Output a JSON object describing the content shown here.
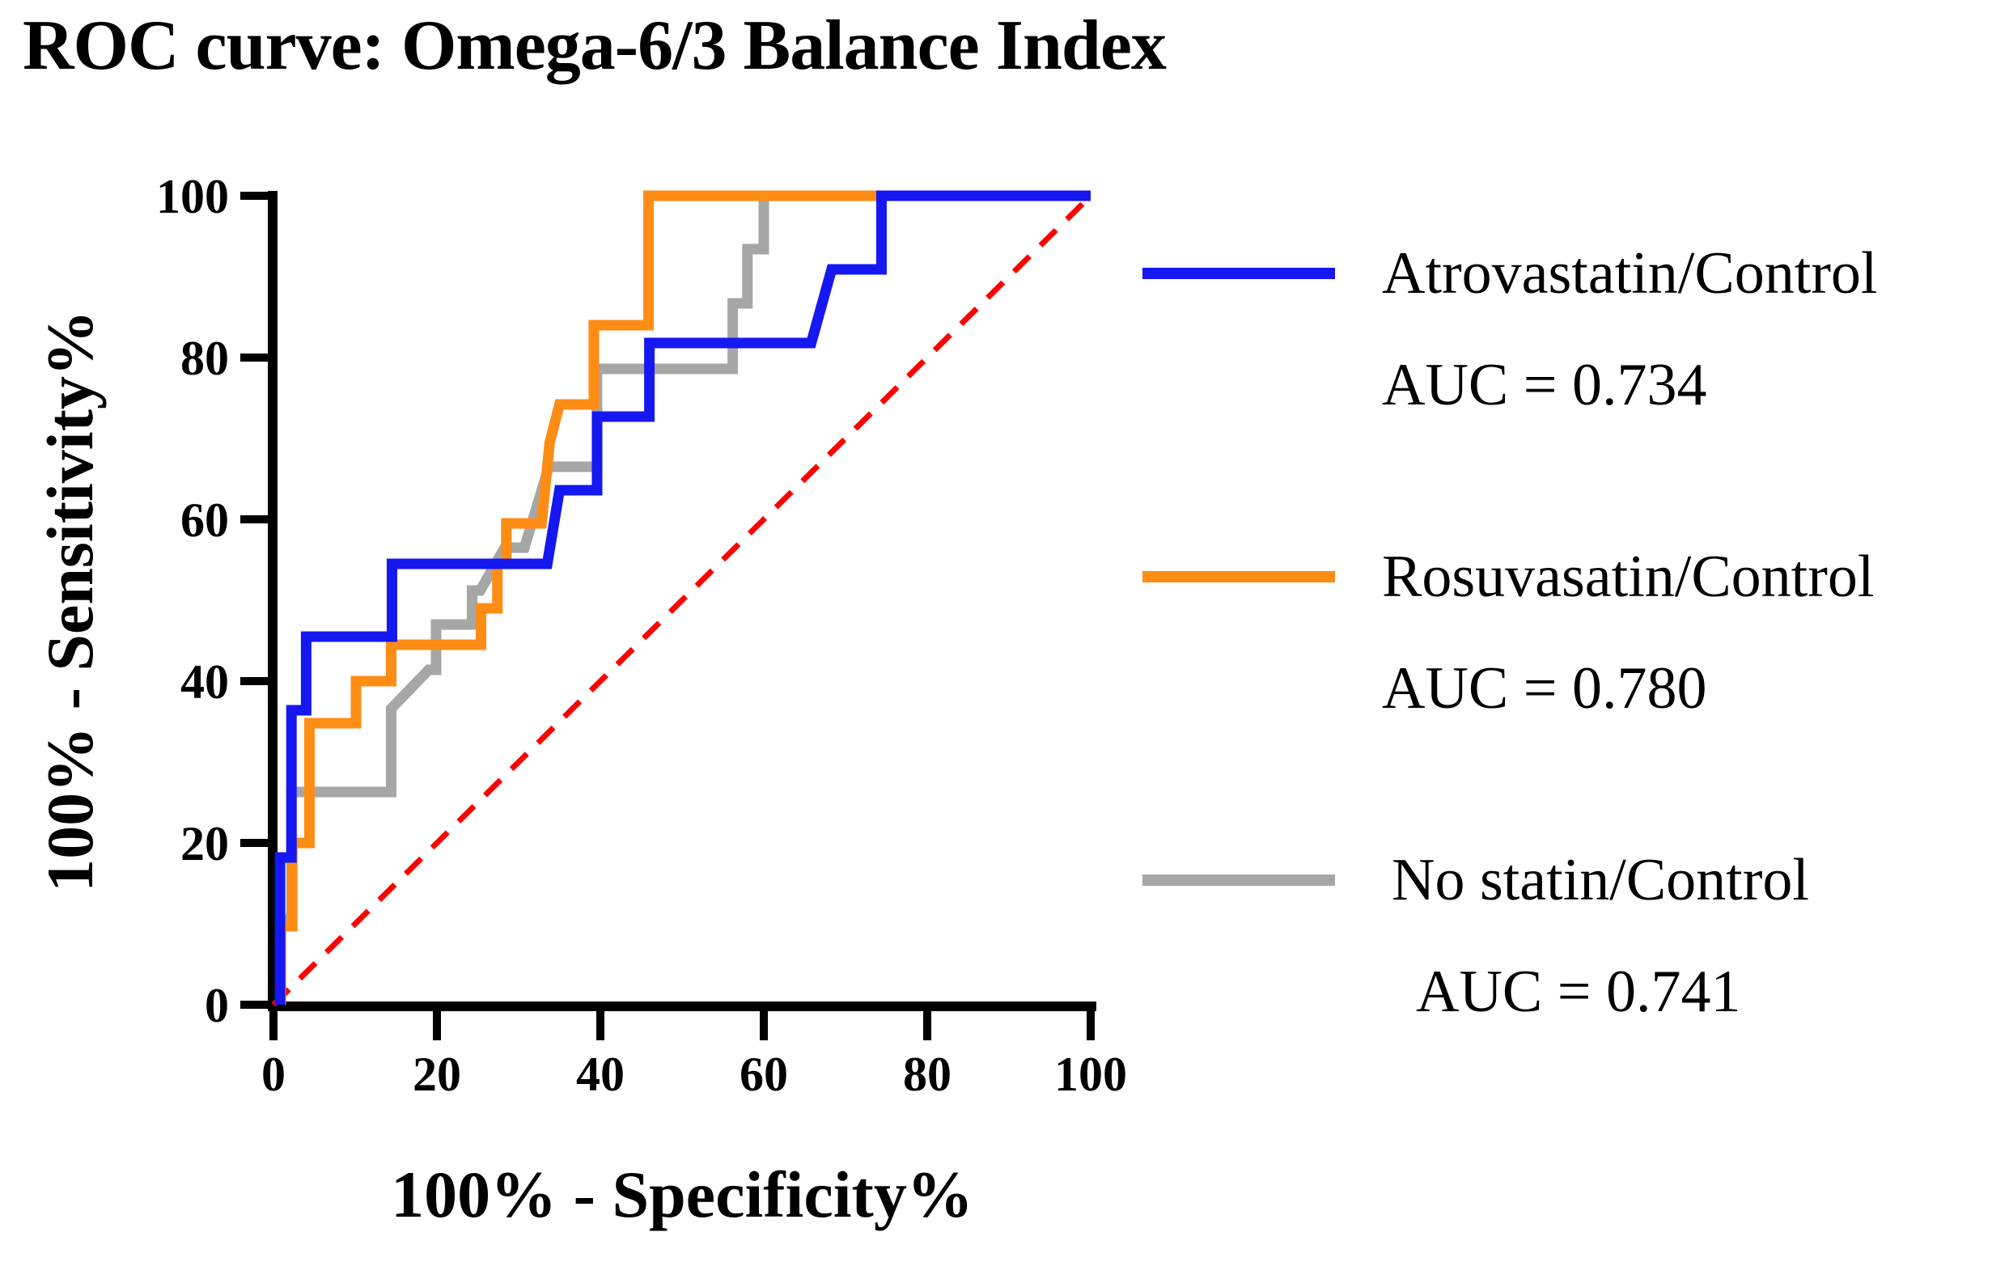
{
  "title": "ROC curve: Omega-6/3 Balance Index",
  "legend": [
    {
      "name": "Atrovastatin/Control",
      "auc_label": "AUC = 0.734",
      "color": "#1518f0"
    },
    {
      "name": "Rosuvasatin/Control",
      "auc_label": "AUC = 0.780",
      "color": "#ff8c15"
    },
    {
      "name": "No statin/Control",
      "auc_label": "AUC = 0.741",
      "color": "#a6a6a6"
    }
  ],
  "chart_data": {
    "type": "line",
    "subtype": "roc-step-curves",
    "title": "ROC curve: Omega-6/3 Balance Index",
    "xlabel": "100% - Specificity%",
    "ylabel": "100% - Sensitivity%",
    "xlim": [
      0,
      100
    ],
    "ylim": [
      0,
      100
    ],
    "x_ticks": [
      "0",
      "20",
      "40",
      "60",
      "80",
      "100"
    ],
    "y_ticks": [
      "0",
      "20",
      "40",
      "60",
      "80",
      "100"
    ],
    "grid": false,
    "legend_position": "right",
    "reference_line": {
      "name": "chance-diagonal",
      "color": "#ff0000",
      "dash": true,
      "points": [
        [
          0,
          0
        ],
        [
          100,
          100
        ]
      ]
    },
    "series": [
      {
        "name": "Atrovastatin/Control",
        "auc": 0.734,
        "color": "#1518f0",
        "points": [
          [
            0.8,
            0
          ],
          [
            0.8,
            18.2
          ],
          [
            2.2,
            18.2
          ],
          [
            2.2,
            36.4
          ],
          [
            4,
            36.4
          ],
          [
            4,
            45.5
          ],
          [
            14.5,
            45.5
          ],
          [
            14.5,
            54.5
          ],
          [
            33.5,
            54.5
          ],
          [
            35,
            63.6
          ],
          [
            39.6,
            63.6
          ],
          [
            39.6,
            72.7
          ],
          [
            46,
            72.7
          ],
          [
            46,
            81.8
          ],
          [
            65.8,
            81.8
          ],
          [
            68.3,
            90.9
          ],
          [
            74.4,
            90.9
          ],
          [
            74.4,
            100
          ],
          [
            100,
            100
          ]
        ]
      },
      {
        "name": "Rosuvasatin/Control",
        "auc": 0.78,
        "color": "#ff8c15",
        "points": [
          [
            0.9,
            0
          ],
          [
            0.9,
            9.7
          ],
          [
            2.3,
            9.7
          ],
          [
            2.3,
            20
          ],
          [
            4.4,
            20
          ],
          [
            4.4,
            34.8
          ],
          [
            10.1,
            34.8
          ],
          [
            10.1,
            40
          ],
          [
            14.4,
            40
          ],
          [
            14.4,
            44.5
          ],
          [
            25.4,
            44.5
          ],
          [
            25.4,
            49
          ],
          [
            27.4,
            49
          ],
          [
            27.4,
            54.5
          ],
          [
            28.5,
            54.5
          ],
          [
            28.5,
            59.5
          ],
          [
            32.8,
            59.5
          ],
          [
            33.8,
            69.5
          ],
          [
            35,
            74.2
          ],
          [
            39.2,
            74.2
          ],
          [
            39.2,
            84
          ],
          [
            45.9,
            84
          ],
          [
            45.9,
            100
          ],
          [
            100,
            100
          ]
        ]
      },
      {
        "name": "No statin/Control",
        "auc": 0.741,
        "color": "#a6a6a6",
        "points": [
          [
            0.9,
            0
          ],
          [
            0.9,
            10.5
          ],
          [
            2.2,
            10.5
          ],
          [
            2.2,
            26.3
          ],
          [
            14.4,
            26.3
          ],
          [
            14.4,
            36.6
          ],
          [
            19,
            41.4
          ],
          [
            19.9,
            41.4
          ],
          [
            19.9,
            47
          ],
          [
            24.3,
            47
          ],
          [
            24.3,
            51.2
          ],
          [
            25.3,
            51.2
          ],
          [
            28.3,
            56.5
          ],
          [
            30.7,
            56.5
          ],
          [
            33.7,
            66.5
          ],
          [
            39.6,
            66.5
          ],
          [
            39.6,
            78.6
          ],
          [
            56.2,
            78.6
          ],
          [
            56.2,
            86.7
          ],
          [
            58,
            86.7
          ],
          [
            58,
            93.4
          ],
          [
            60,
            93.4
          ],
          [
            60,
            100
          ],
          [
            100,
            100
          ]
        ]
      }
    ]
  }
}
